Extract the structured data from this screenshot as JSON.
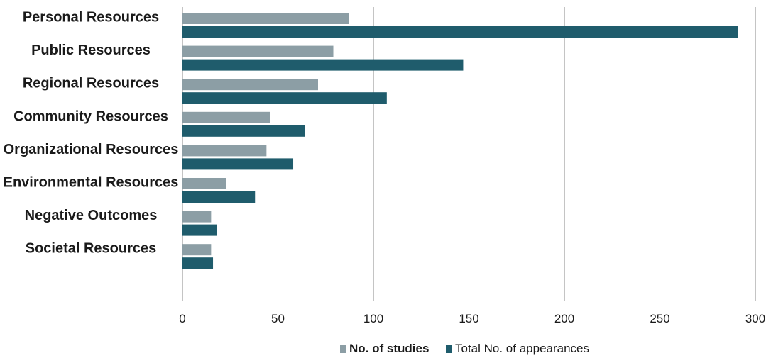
{
  "chart_data": {
    "type": "bar",
    "orientation": "horizontal",
    "categories": [
      "Personal Resources",
      "Public Resources",
      "Regional Resources",
      "Community Resources",
      "Organizational Resources",
      "Environmental Resources",
      "Negative Outcomes",
      "Societal Resources"
    ],
    "series": [
      {
        "name": "No. of studies",
        "color": "#8c9ea5",
        "values": [
          87,
          79,
          71,
          46,
          44,
          23,
          15,
          15
        ]
      },
      {
        "name": "Total No. of appearances",
        "color": "#1f5c6c",
        "values": [
          291,
          147,
          107,
          64,
          58,
          38,
          18,
          16
        ]
      }
    ],
    "xlim": [
      0,
      300
    ],
    "xticks": [
      "0",
      "50",
      "100",
      "150",
      "200",
      "250",
      "300"
    ],
    "grid": "vertical",
    "legend_position": "bottom"
  }
}
